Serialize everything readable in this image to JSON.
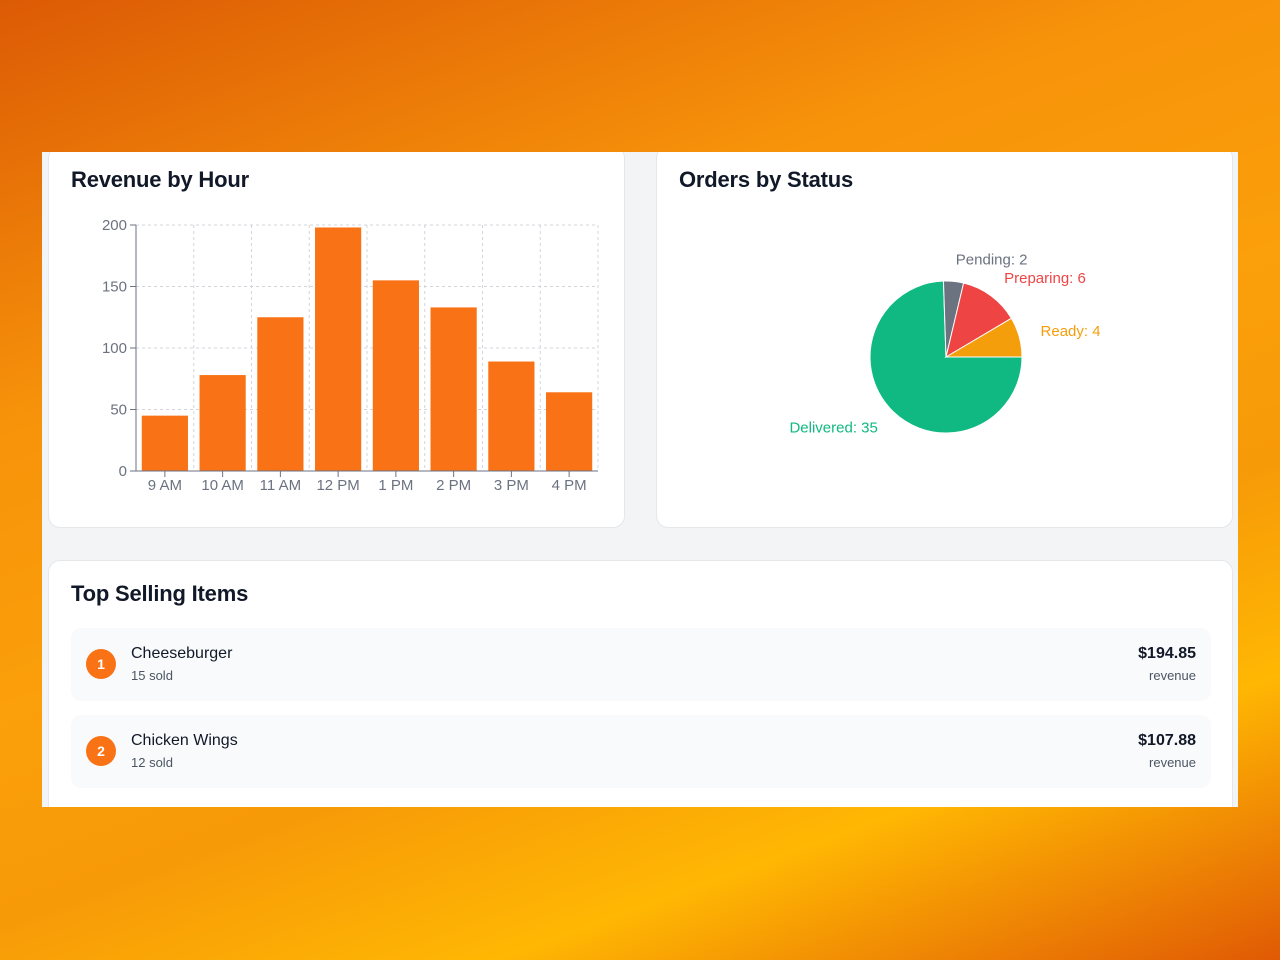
{
  "revenue_card": {
    "title": "Revenue by Hour"
  },
  "status_card": {
    "title": "Orders by Status"
  },
  "top_items_card": {
    "title": "Top Selling Items",
    "items": [
      {
        "rank": "1",
        "name": "Cheeseburger",
        "sold": "15 sold",
        "revenue": "$194.85",
        "revenue_label": "revenue"
      },
      {
        "rank": "2",
        "name": "Chicken Wings",
        "sold": "12 sold",
        "revenue": "$107.88",
        "revenue_label": "revenue"
      }
    ]
  },
  "colors": {
    "accent": "#f97316",
    "bar": "#f97316"
  },
  "chart_data": [
    {
      "type": "bar",
      "title": "Revenue by Hour",
      "categories": [
        "9 AM",
        "10 AM",
        "11 AM",
        "12 PM",
        "1 PM",
        "2 PM",
        "3 PM",
        "4 PM"
      ],
      "values": [
        45,
        78,
        125,
        198,
        155,
        133,
        89,
        64
      ],
      "yticks": [
        "0",
        "50",
        "100",
        "150",
        "200"
      ],
      "ylim": [
        0,
        200
      ],
      "grid": true,
      "color": "#f97316"
    },
    {
      "type": "pie",
      "title": "Orders by Status",
      "slices": [
        {
          "label": "Delivered",
          "value": 35,
          "display": "Delivered: 35",
          "color": "#10b981"
        },
        {
          "label": "Pending",
          "value": 2,
          "display": "Pending: 2",
          "color": "#6b7280"
        },
        {
          "label": "Preparing",
          "value": 6,
          "display": "Preparing: 6",
          "color": "#ef4444"
        },
        {
          "label": "Ready",
          "value": 4,
          "display": "Ready: 4",
          "color": "#f59e0b"
        }
      ]
    }
  ]
}
